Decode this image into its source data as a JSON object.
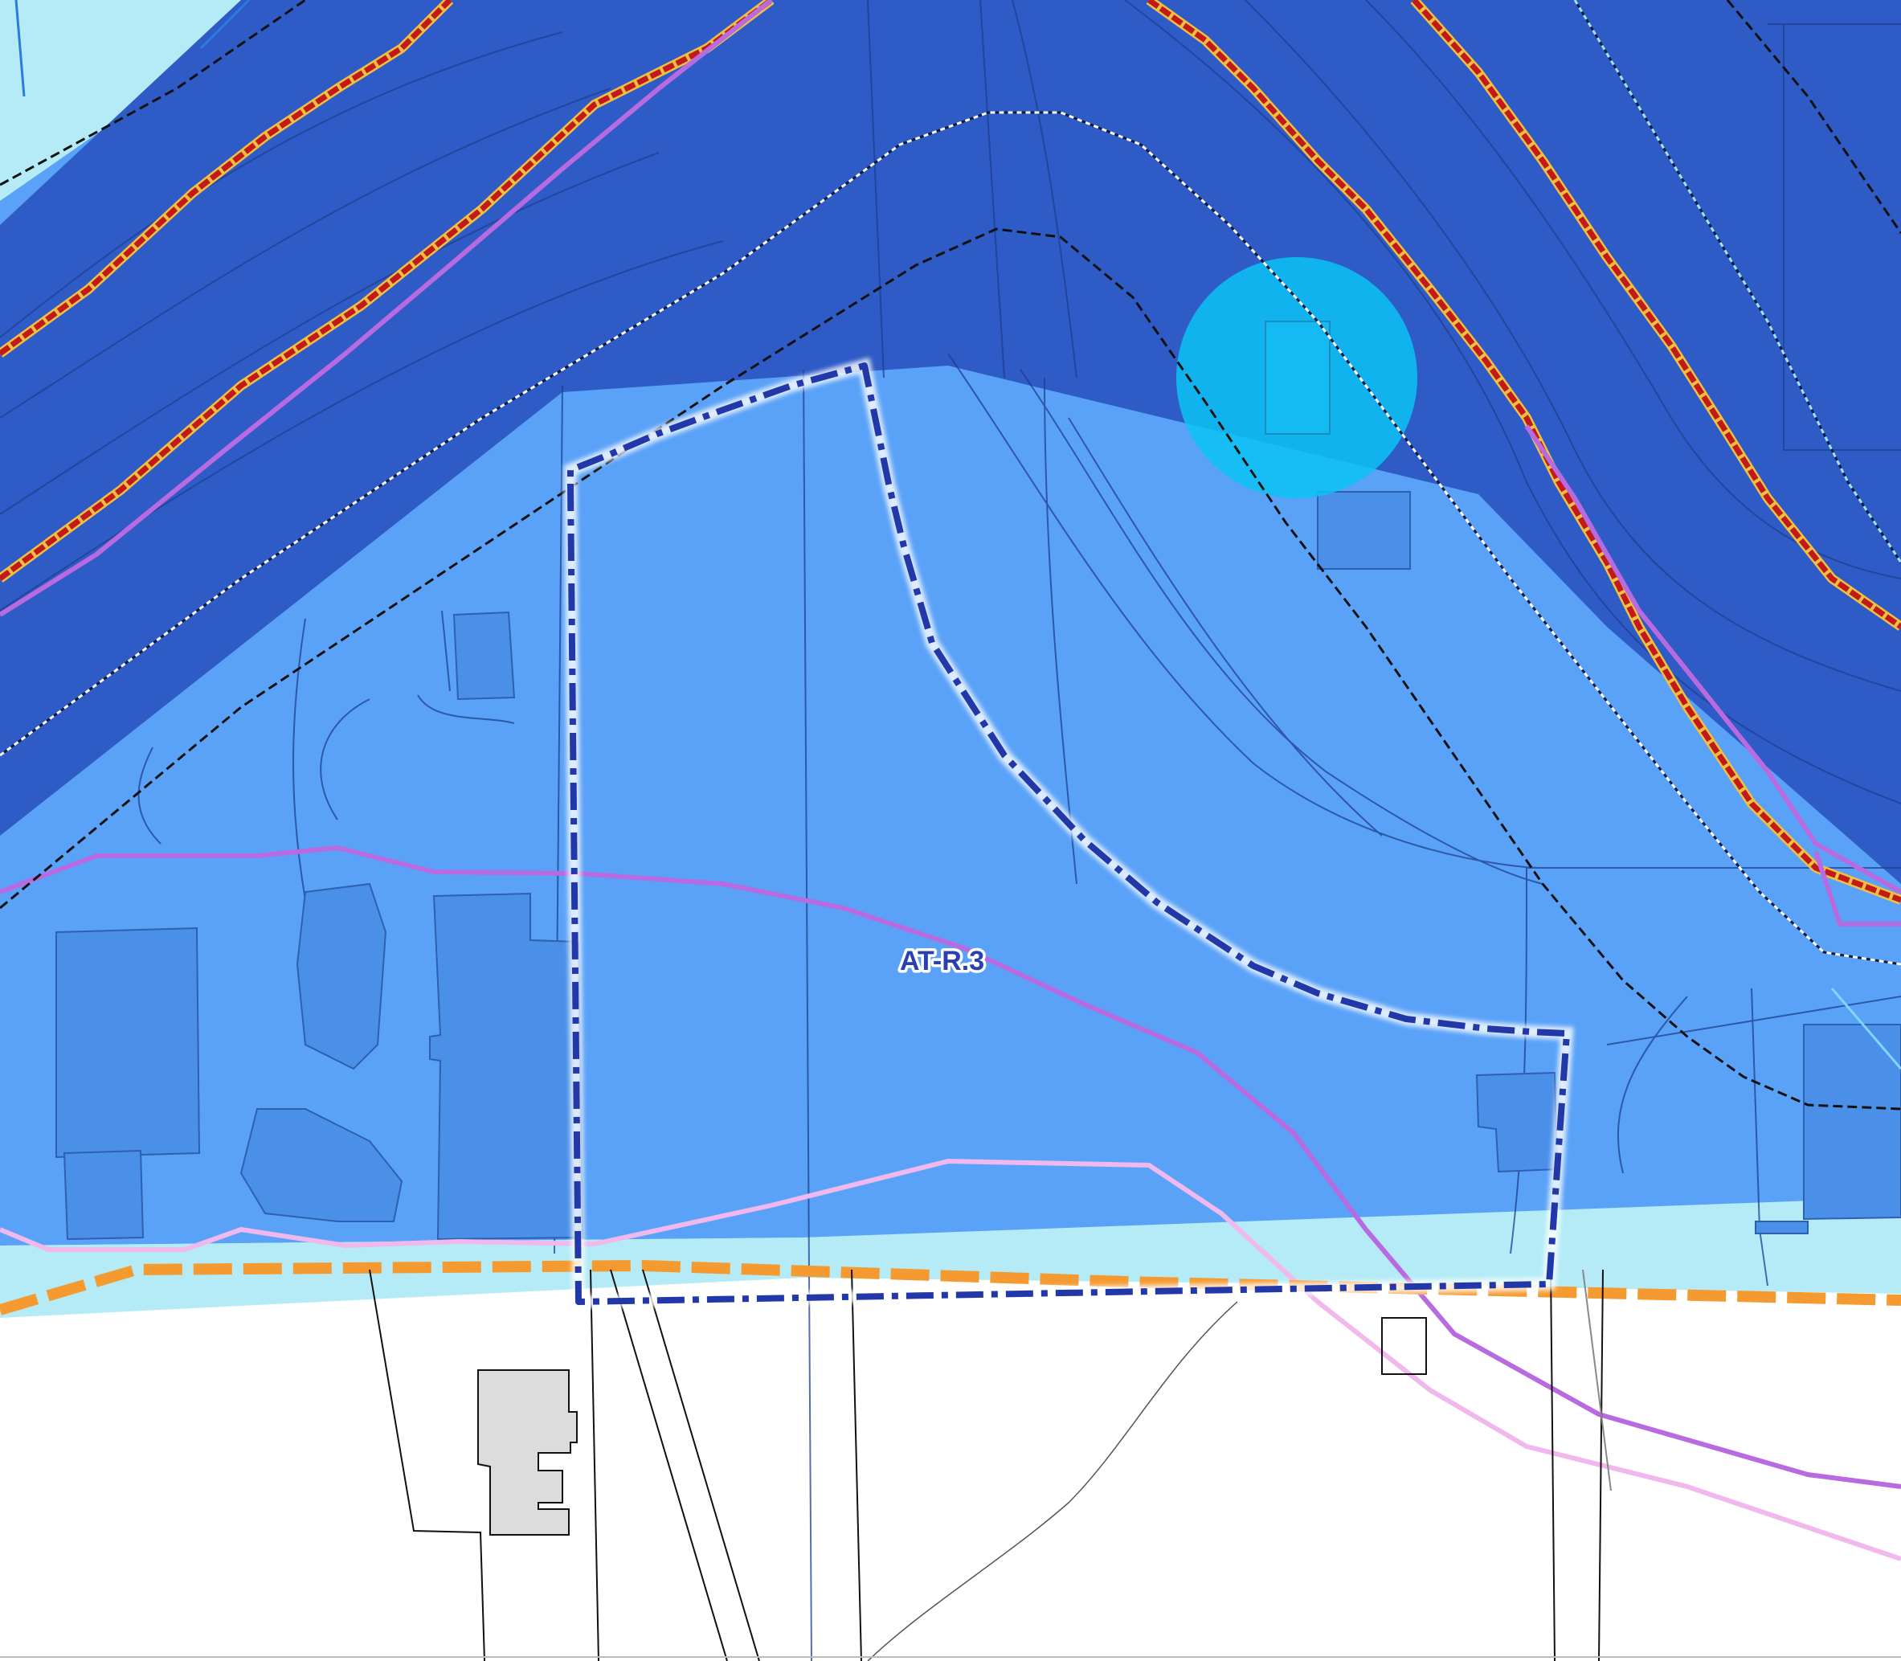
{
  "map": {
    "zone_label": "AT-R.3"
  },
  "colors": {
    "flood_zone_high": "#2e5bc6",
    "flood_zone_medium": "#5aa2f8",
    "flood_zone_low": "#b4ebf6",
    "building_in_zone": "#4b90e8",
    "building_outside": "#dcdcdc",
    "area_boundary": "#2238a8",
    "municipal_boundary": "#f59a30",
    "river_line": "#c21a1a",
    "river_casing": "#f0c040",
    "pipeline_primary": "#b86ae0",
    "pipeline_secondary": "#f0b8ec",
    "contour_line": "#1e3f8f",
    "marker_circle": "#0bc3f5"
  }
}
